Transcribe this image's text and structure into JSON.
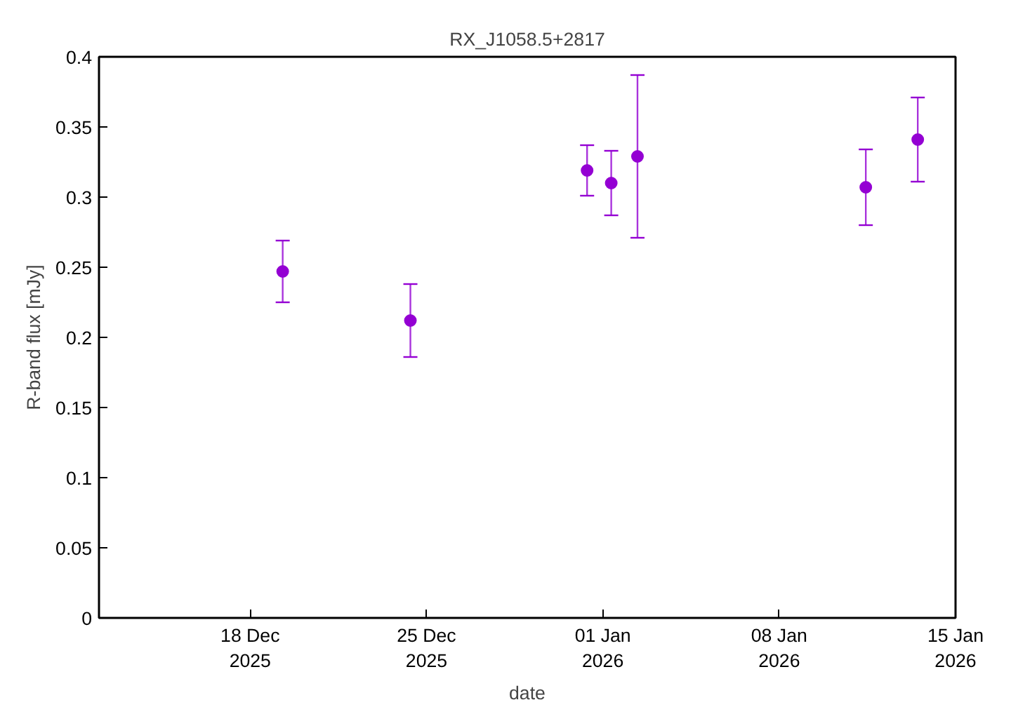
{
  "chart_data": {
    "type": "scatter",
    "title": "RX_J1058.5+2817",
    "xlabel": "date",
    "ylabel": "R-band flux [mJy]",
    "x": [
      "2025-12-19T07:00",
      "2025-12-24T08:40",
      "2025-12-31T09:00",
      "2026-01-01T08:00",
      "2026-01-02T09:00",
      "2026-01-11T10:30",
      "2026-01-13T12:00"
    ],
    "series": [
      {
        "color": "#9400d3",
        "values": [
          0.247,
          0.212,
          0.319,
          0.31,
          0.329,
          0.307,
          0.341
        ],
        "errors": [
          [
            0.225,
            0.269
          ],
          [
            0.186,
            0.238
          ],
          [
            0.301,
            0.337
          ],
          [
            0.287,
            0.333
          ],
          [
            0.271,
            0.387
          ],
          [
            0.28,
            0.334
          ],
          [
            0.311,
            0.371
          ]
        ]
      }
    ],
    "xlim": [
      "2025-12-12",
      "2026-01-15"
    ],
    "xticks": [
      {
        "value": "2025-12-18",
        "label": "18 Dec\n2025"
      },
      {
        "value": "2025-12-25",
        "label": "25 Dec\n2025"
      },
      {
        "value": "2026-01-01",
        "label": "01 Jan\n2026"
      },
      {
        "value": "2026-01-08",
        "label": "08 Jan\n2026"
      },
      {
        "value": "2026-01-15",
        "label": "15 Jan\n2026"
      }
    ],
    "ylim": [
      0,
      0.4
    ],
    "yticks": [
      0,
      0.05,
      0.1,
      0.15,
      0.2,
      0.25,
      0.3,
      0.35,
      0.4
    ],
    "marker": "circle",
    "grid": false
  }
}
